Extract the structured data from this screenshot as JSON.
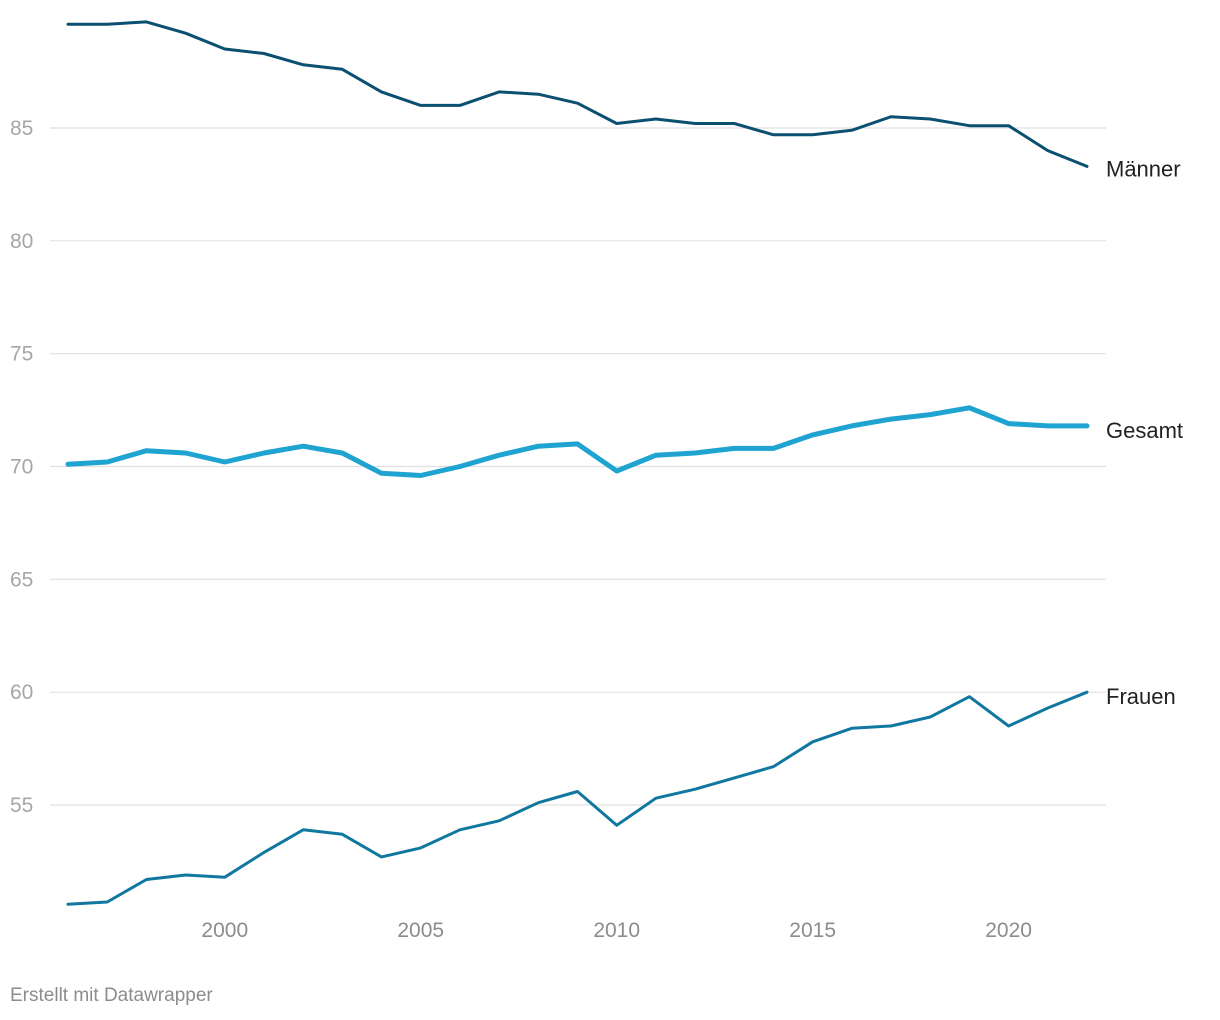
{
  "footer": {
    "credit": "Erstellt mit Datawrapper"
  },
  "chart_data": {
    "type": "line",
    "title": "",
    "xlabel": "",
    "ylabel": "",
    "x": [
      1996,
      1997,
      1998,
      1999,
      2000,
      2001,
      2002,
      2003,
      2004,
      2005,
      2006,
      2007,
      2008,
      2009,
      2010,
      2011,
      2012,
      2013,
      2014,
      2015,
      2016,
      2017,
      2018,
      2019,
      2020,
      2021,
      2022
    ],
    "xlim": [
      1996,
      2022
    ],
    "ylim": [
      50.5,
      89.9
    ],
    "y_ticks": [
      55,
      60,
      65,
      70,
      75,
      80,
      85
    ],
    "x_ticks": [
      2000,
      2005,
      2010,
      2015,
      2020
    ],
    "grid": true,
    "legend": "inline-right",
    "series": [
      {
        "name": "Männer",
        "color": "#0b4f71",
        "stroke_width": 3,
        "values": [
          89.6,
          89.6,
          89.7,
          89.2,
          88.5,
          88.3,
          87.8,
          87.6,
          86.6,
          86.0,
          86.0,
          86.6,
          86.5,
          86.1,
          85.2,
          85.4,
          85.2,
          85.2,
          84.7,
          84.7,
          84.9,
          85.5,
          85.4,
          85.1,
          85.1,
          84.0,
          83.3
        ]
      },
      {
        "name": "Gesamt",
        "color": "#1fa3d1",
        "stroke_width": 5,
        "values": [
          70.1,
          70.2,
          70.7,
          70.6,
          70.2,
          70.6,
          70.9,
          70.6,
          69.7,
          69.6,
          70.0,
          70.5,
          70.9,
          71.0,
          69.8,
          70.5,
          70.6,
          70.8,
          70.8,
          71.4,
          71.8,
          72.1,
          72.3,
          72.6,
          71.9,
          71.8,
          71.8
        ]
      },
      {
        "name": "Frauen",
        "color": "#1078a0",
        "stroke_width": 3,
        "values": [
          50.6,
          50.7,
          51.7,
          51.9,
          51.8,
          52.9,
          53.9,
          53.7,
          52.7,
          53.1,
          53.9,
          54.3,
          55.1,
          55.6,
          54.1,
          55.3,
          55.7,
          56.2,
          56.7,
          57.8,
          58.4,
          58.5,
          58.9,
          59.8,
          58.5,
          59.3,
          60.0
        ]
      }
    ]
  }
}
